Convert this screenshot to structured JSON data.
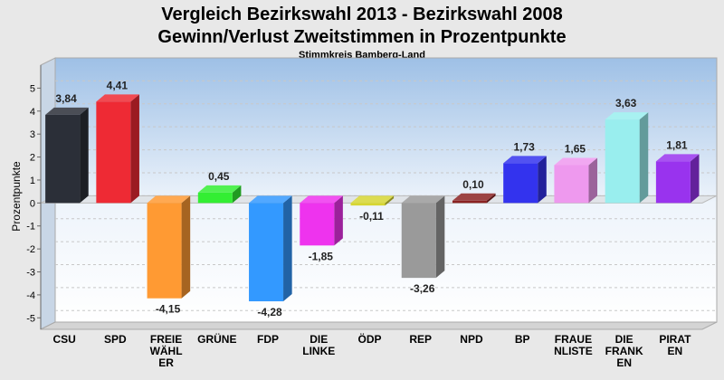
{
  "chart_data": {
    "type": "bar",
    "title": "Vergleich Bezirkswahl 2013 - Bezirkswahl 2008",
    "title_line2": "Gewinn/Verlust Zweitstimmen in Prozentpunkte",
    "subtitle": "Stimmkreis Bamberg-Land",
    "ylabel": "Prozentpunkte",
    "xlabel": "",
    "ylim": [
      -5.5,
      6
    ],
    "yticks": [
      "5",
      "4",
      "3",
      "2",
      "1",
      "0",
      "-1",
      "-2",
      "-3",
      "-4",
      "-5"
    ],
    "categories": [
      {
        "lines": [
          "CSU"
        ]
      },
      {
        "lines": [
          "SPD"
        ]
      },
      {
        "lines": [
          "FREIE",
          "WÄHL",
          "ER"
        ]
      },
      {
        "lines": [
          "GRÜNE"
        ]
      },
      {
        "lines": [
          "FDP"
        ]
      },
      {
        "lines": [
          "DIE",
          "LINKE"
        ]
      },
      {
        "lines": [
          "ÖDP"
        ]
      },
      {
        "lines": [
          "REP"
        ]
      },
      {
        "lines": [
          "NPD"
        ]
      },
      {
        "lines": [
          "BP"
        ]
      },
      {
        "lines": [
          "FRAUE",
          "NLISTE"
        ]
      },
      {
        "lines": [
          "DIE",
          "FRANK",
          "EN"
        ]
      },
      {
        "lines": [
          "PIRAT",
          "EN"
        ]
      }
    ],
    "values": [
      3.84,
      4.41,
      -4.15,
      0.45,
      -4.28,
      -1.85,
      -0.11,
      -3.26,
      0.1,
      1.73,
      1.65,
      3.63,
      1.81
    ],
    "value_labels": [
      "3,84",
      "4,41",
      "-4,15",
      "0,45",
      "-4,28",
      "-1,85",
      "-0,11",
      "-3,26",
      "0,10",
      "1,73",
      "1,65",
      "3,63",
      "1,81"
    ],
    "colors": [
      "#2b2f38",
      "#ee2a34",
      "#ff9a33",
      "#33ee33",
      "#3399ff",
      "#ee33ee",
      "#d6d633",
      "#9a9a9a",
      "#8a2222",
      "#3333ee",
      "#ee99ee",
      "#99eeee",
      "#9933ee"
    ],
    "grid": true,
    "legend": "none"
  }
}
